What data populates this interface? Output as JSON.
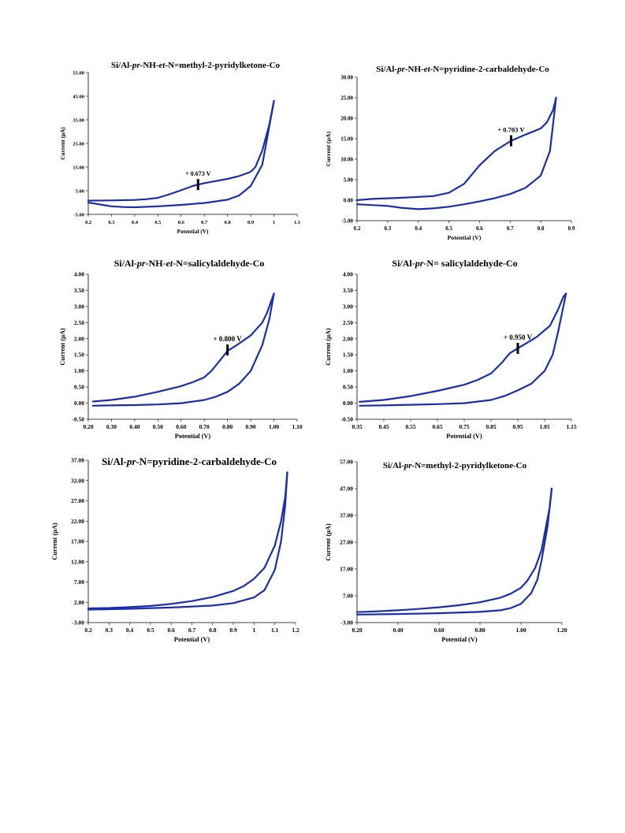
{
  "chart_data": [
    {
      "type": "line",
      "title": [
        "Si/Al-",
        "pr",
        "-NH-",
        "et",
        "-N=methyl-2-pyridylketone-Co"
      ],
      "xlabel": "Potential (V)",
      "ylabel": "Current (μA)",
      "xlim": [
        0.2,
        1.1
      ],
      "ylim": [
        -5,
        55
      ],
      "xticks": [
        "0.2",
        "0.3",
        "0.4",
        "0.5",
        "0.6",
        "0.7",
        "0.8",
        "0.9",
        "1",
        "1.1"
      ],
      "yticks": [
        "-5.00",
        "5.00",
        "15.00",
        "25.00",
        "35.00",
        "45.00",
        "55.00"
      ],
      "series": [
        {
          "values": [
            [
              0.2,
              0.0
            ],
            [
              0.25,
              -0.8
            ],
            [
              0.3,
              -1.6
            ],
            [
              0.35,
              -1.9
            ],
            [
              0.4,
              -2.0
            ],
            [
              0.5,
              -1.6
            ],
            [
              0.6,
              -1.0
            ],
            [
              0.7,
              -0.2
            ],
            [
              0.8,
              1.2
            ],
            [
              0.85,
              3.0
            ],
            [
              0.9,
              7.0
            ],
            [
              0.95,
              16.0
            ],
            [
              1.0,
              43.0
            ]
          ]
        },
        {
          "values": [
            [
              1.0,
              43.0
            ],
            [
              0.98,
              33.0
            ],
            [
              0.95,
              22.0
            ],
            [
              0.92,
              15.0
            ],
            [
              0.9,
              13.0
            ],
            [
              0.85,
              11.2
            ],
            [
              0.8,
              10.0
            ],
            [
              0.7,
              8.2
            ],
            [
              0.673,
              7.6
            ],
            [
              0.65,
              7.0
            ],
            [
              0.6,
              5.2
            ],
            [
              0.55,
              3.5
            ],
            [
              0.5,
              2.0
            ],
            [
              0.45,
              1.4
            ],
            [
              0.4,
              1.1
            ],
            [
              0.3,
              0.9
            ],
            [
              0.2,
              0.8
            ]
          ]
        }
      ],
      "annotation": {
        "label": "+ 0.673 V",
        "x": 0.673,
        "y": 7.6
      }
    },
    {
      "type": "line",
      "title": [
        "Si/Al-",
        "pr",
        "-NH-",
        "et",
        "-N=pyridine-2-carbaldehyde-Co"
      ],
      "xlabel": "Potential (V)",
      "ylabel": "Current (μA)",
      "xlim": [
        0.2,
        0.9
      ],
      "ylim": [
        -5,
        30
      ],
      "xticks": [
        "0.2",
        "0.3",
        "0.4",
        "0.5",
        "0.6",
        "0.7",
        "0.8",
        "0.9"
      ],
      "yticks": [
        "-5.00",
        "0.00",
        "5.00",
        "10.00",
        "15.00",
        "20.00",
        "25.00",
        "30.00"
      ],
      "series": [
        {
          "values": [
            [
              0.2,
              -1.0
            ],
            [
              0.3,
              -1.4
            ],
            [
              0.35,
              -1.9
            ],
            [
              0.4,
              -2.2
            ],
            [
              0.45,
              -2.0
            ],
            [
              0.5,
              -1.6
            ],
            [
              0.55,
              -1.0
            ],
            [
              0.6,
              -0.3
            ],
            [
              0.65,
              0.5
            ],
            [
              0.7,
              1.5
            ],
            [
              0.75,
              3.0
            ],
            [
              0.8,
              6.0
            ],
            [
              0.83,
              12.0
            ],
            [
              0.85,
              25.0
            ]
          ]
        },
        {
          "values": [
            [
              0.85,
              25.0
            ],
            [
              0.84,
              22.0
            ],
            [
              0.82,
              19.0
            ],
            [
              0.8,
              17.5
            ],
            [
              0.75,
              16.0
            ],
            [
              0.703,
              14.5
            ],
            [
              0.65,
              12.0
            ],
            [
              0.6,
              8.5
            ],
            [
              0.55,
              4.0
            ],
            [
              0.5,
              1.8
            ],
            [
              0.45,
              1.0
            ],
            [
              0.35,
              0.6
            ],
            [
              0.25,
              0.3
            ],
            [
              0.2,
              0.0
            ]
          ]
        }
      ],
      "annotation": {
        "label": "+ 0.703 V",
        "x": 0.703,
        "y": 14.5
      }
    },
    {
      "type": "line",
      "title": [
        "Si/Al-",
        "pr",
        "-NH-",
        "et",
        "-N=salicylaldehyde-Co"
      ],
      "xlabel": "Potential (V)",
      "ylabel": "Current (μA)",
      "xlim": [
        0.2,
        1.1
      ],
      "ylim": [
        -0.5,
        4.0
      ],
      "xticks": [
        "0.20",
        "0.30",
        "0.40",
        "0.50",
        "0.60",
        "0.70",
        "0.80",
        "0.90",
        "1.00",
        "1.10"
      ],
      "yticks": [
        "-0.50",
        "0.00",
        "0.50",
        "1.00",
        "1.50",
        "2.00",
        "2.50",
        "3.00",
        "3.50",
        "4.00"
      ],
      "series": [
        {
          "values": [
            [
              0.22,
              -0.08
            ],
            [
              0.3,
              -0.07
            ],
            [
              0.4,
              -0.06
            ],
            [
              0.5,
              -0.04
            ],
            [
              0.6,
              0.0
            ],
            [
              0.7,
              0.1
            ],
            [
              0.75,
              0.2
            ],
            [
              0.8,
              0.35
            ],
            [
              0.85,
              0.6
            ],
            [
              0.9,
              1.0
            ],
            [
              0.95,
              1.8
            ],
            [
              0.98,
              2.6
            ],
            [
              1.0,
              3.4
            ]
          ]
        },
        {
          "values": [
            [
              1.0,
              3.4
            ],
            [
              0.99,
              3.2
            ],
            [
              0.97,
              2.8
            ],
            [
              0.95,
              2.5
            ],
            [
              0.9,
              2.1
            ],
            [
              0.85,
              1.85
            ],
            [
              0.8,
              1.62
            ],
            [
              0.77,
              1.35
            ],
            [
              0.73,
              1.0
            ],
            [
              0.7,
              0.8
            ],
            [
              0.65,
              0.65
            ],
            [
              0.6,
              0.53
            ],
            [
              0.5,
              0.35
            ],
            [
              0.4,
              0.2
            ],
            [
              0.3,
              0.1
            ],
            [
              0.22,
              0.05
            ]
          ]
        }
      ],
      "annotation": {
        "label": "+ 0.800 V",
        "x": 0.8,
        "y": 1.65
      }
    },
    {
      "type": "line",
      "title": [
        "Si/Al-",
        "pr",
        "-N= salicylaldehyde-Co"
      ],
      "xlabel": "Potential (V)",
      "ylabel": "Current (μA)",
      "xlim": [
        0.35,
        1.15
      ],
      "ylim": [
        -0.5,
        4.0
      ],
      "xticks": [
        "0.35",
        "0.45",
        "0.55",
        "0.65",
        "0.75",
        "0.85",
        "0.95",
        "1.05",
        "1.15"
      ],
      "yticks": [
        "-0.50",
        "0.00",
        "0.50",
        "1.00",
        "1.50",
        "2.00",
        "2.50",
        "3.00",
        "3.50",
        "4.00"
      ],
      "series": [
        {
          "values": [
            [
              0.36,
              -0.08
            ],
            [
              0.45,
              -0.07
            ],
            [
              0.55,
              -0.05
            ],
            [
              0.65,
              -0.03
            ],
            [
              0.75,
              0.0
            ],
            [
              0.85,
              0.1
            ],
            [
              0.9,
              0.22
            ],
            [
              0.95,
              0.4
            ],
            [
              1.0,
              0.6
            ],
            [
              1.05,
              1.0
            ],
            [
              1.08,
              1.5
            ],
            [
              1.1,
              2.2
            ],
            [
              1.12,
              3.0
            ],
            [
              1.13,
              3.4
            ]
          ]
        },
        {
          "values": [
            [
              1.13,
              3.4
            ],
            [
              1.12,
              3.3
            ],
            [
              1.1,
              2.9
            ],
            [
              1.07,
              2.4
            ],
            [
              1.02,
              2.05
            ],
            [
              0.98,
              1.85
            ],
            [
              0.95,
              1.7
            ],
            [
              0.92,
              1.55
            ],
            [
              0.89,
              1.25
            ],
            [
              0.85,
              0.92
            ],
            [
              0.8,
              0.72
            ],
            [
              0.75,
              0.57
            ],
            [
              0.65,
              0.38
            ],
            [
              0.55,
              0.22
            ],
            [
              0.45,
              0.1
            ],
            [
              0.36,
              0.04
            ]
          ]
        }
      ],
      "annotation": {
        "label": "+ 0.950 V",
        "x": 0.95,
        "y": 1.7
      }
    },
    {
      "type": "line",
      "title": [
        "Si/Al-",
        "pr",
        "-N=pyridine-2-carbaldehyde-Co"
      ],
      "xlabel": "Potential (V)",
      "ylabel": "Current (μA)",
      "xlim": [
        0.2,
        1.2
      ],
      "ylim": [
        -3,
        37
      ],
      "xticks": [
        "0.2",
        "0.3",
        "0.4",
        "0.5",
        "0.6",
        "0.7",
        "0.8",
        "0.9",
        "1",
        "1.1",
        "1.2"
      ],
      "yticks": [
        "-3.00",
        "2.00",
        "7.00",
        "12.00",
        "17.00",
        "22.00",
        "27.00",
        "32.00",
        "37.00"
      ],
      "series": [
        {
          "values": [
            [
              0.2,
              0.2
            ],
            [
              0.4,
              0.4
            ],
            [
              0.6,
              0.7
            ],
            [
              0.8,
              1.2
            ],
            [
              0.9,
              1.8
            ],
            [
              1.0,
              3.2
            ],
            [
              1.05,
              5.0
            ],
            [
              1.1,
              10.0
            ],
            [
              1.13,
              17.0
            ],
            [
              1.15,
              26.0
            ],
            [
              1.16,
              34.0
            ]
          ]
        },
        {
          "values": [
            [
              1.16,
              34.0
            ],
            [
              1.15,
              28.0
            ],
            [
              1.13,
              22.0
            ],
            [
              1.1,
              16.0
            ],
            [
              1.05,
              10.5
            ],
            [
              1.0,
              7.8
            ],
            [
              0.95,
              6.0
            ],
            [
              0.9,
              4.8
            ],
            [
              0.8,
              3.3
            ],
            [
              0.7,
              2.3
            ],
            [
              0.6,
              1.6
            ],
            [
              0.5,
              1.1
            ],
            [
              0.4,
              0.8
            ],
            [
              0.3,
              0.6
            ],
            [
              0.2,
              0.5
            ]
          ]
        }
      ]
    },
    {
      "type": "line",
      "title": [
        "Si/Al-",
        "pr",
        "-N=methyl-2-pyridylketone-Co"
      ],
      "xlabel": "Potential (V)",
      "ylabel": "Current (μA)",
      "xlim": [
        0.2,
        1.2
      ],
      "ylim": [
        -3,
        57
      ],
      "xticks": [
        "0.20",
        "0.40",
        "0.60",
        "0.80",
        "1.00",
        "1.20"
      ],
      "yticks": [
        "-3.00",
        "7.00",
        "17.00",
        "27.00",
        "37.00",
        "47.00",
        "57.00"
      ],
      "series": [
        {
          "values": [
            [
              0.2,
              0.0
            ],
            [
              0.4,
              0.2
            ],
            [
              0.6,
              0.5
            ],
            [
              0.8,
              1.0
            ],
            [
              0.9,
              1.6
            ],
            [
              0.95,
              2.4
            ],
            [
              1.0,
              4.0
            ],
            [
              1.05,
              8.0
            ],
            [
              1.08,
              13.0
            ],
            [
              1.1,
              20.0
            ],
            [
              1.13,
              33.0
            ],
            [
              1.15,
              47.0
            ]
          ]
        },
        {
          "values": [
            [
              1.15,
              47.0
            ],
            [
              1.14,
              40.0
            ],
            [
              1.12,
              32.0
            ],
            [
              1.1,
              24.0
            ],
            [
              1.07,
              17.5
            ],
            [
              1.03,
              12.5
            ],
            [
              1.0,
              10.0
            ],
            [
              0.95,
              7.8
            ],
            [
              0.9,
              6.3
            ],
            [
              0.8,
              4.6
            ],
            [
              0.7,
              3.5
            ],
            [
              0.6,
              2.7
            ],
            [
              0.5,
              2.1
            ],
            [
              0.4,
              1.6
            ],
            [
              0.3,
              1.2
            ],
            [
              0.2,
              0.9
            ]
          ]
        }
      ]
    }
  ]
}
